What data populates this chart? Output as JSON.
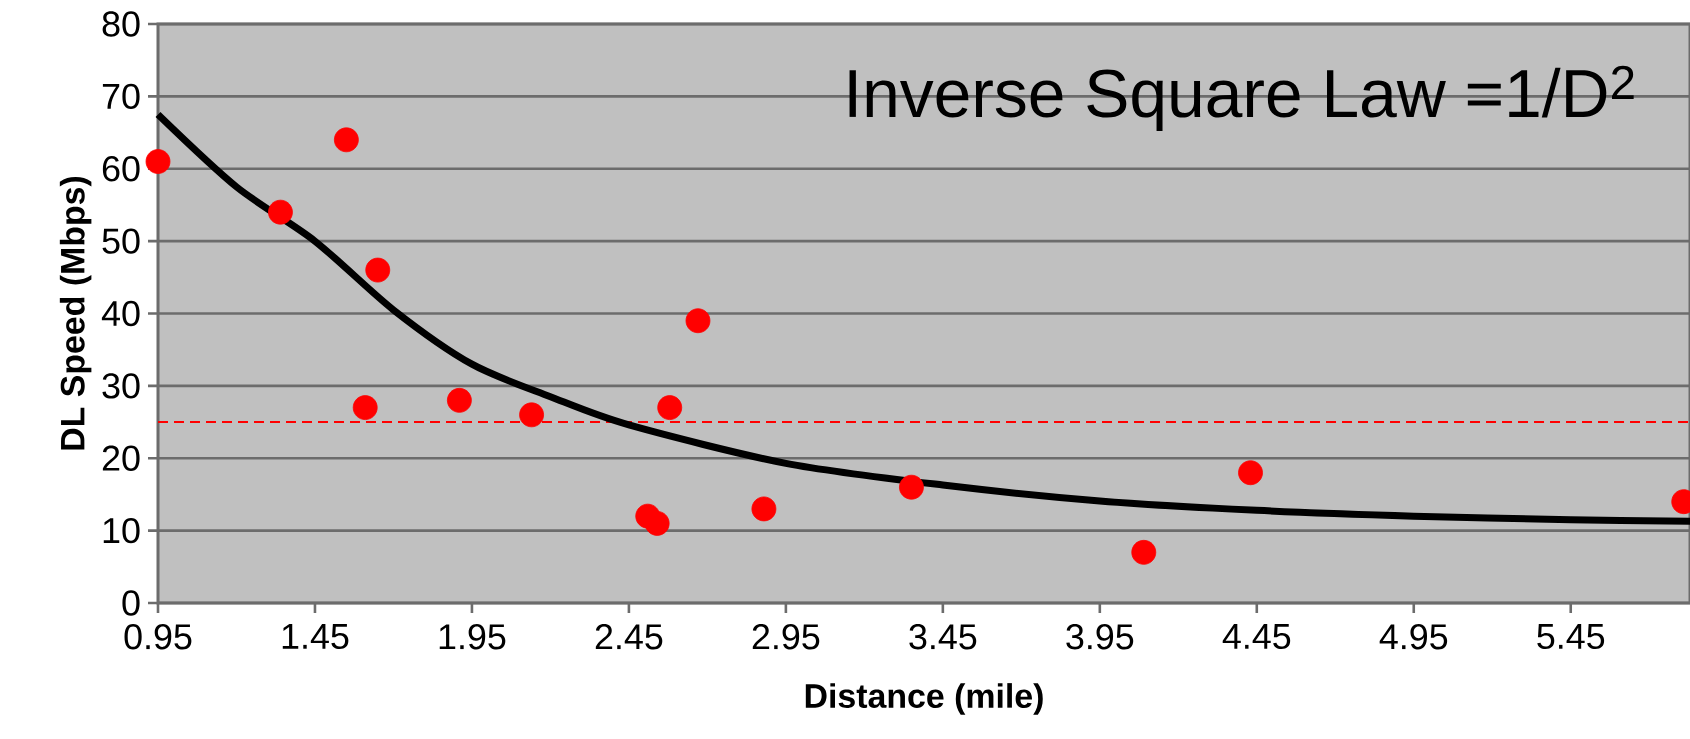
{
  "chart_data": {
    "type": "scatter",
    "xlabel": "Distance (mile)",
    "ylabel": "DL Speed (Mbps)",
    "annotations": [
      "Inverse Square Law =1/D$^{2}$"
    ],
    "xlim": [
      0.95,
      5.83
    ],
    "ylim": [
      0,
      80
    ],
    "xticks": [
      0.95,
      1.45,
      1.95,
      2.45,
      2.95,
      3.45,
      3.95,
      4.45,
      4.95,
      5.45
    ],
    "yticks": [
      0,
      10,
      20,
      30,
      40,
      50,
      60,
      70,
      80
    ],
    "grid": "y",
    "ref_lines": [
      {
        "axis": "y",
        "value": 25,
        "color": "#ff0000",
        "line_style": "dashed"
      }
    ],
    "series": [
      {
        "color": "#ff0000",
        "marker": "circle",
        "x": [
          0.95,
          1.34,
          1.55,
          1.65,
          1.61,
          1.91,
          2.14,
          2.51,
          2.54,
          2.58,
          2.67,
          2.88,
          3.35,
          4.09,
          4.43,
          5.81
        ],
        "values": [
          61,
          54,
          64,
          46,
          27,
          28,
          26,
          12,
          11,
          27,
          39,
          13,
          16,
          7,
          18,
          14
        ]
      },
      {
        "type": "line",
        "color": "#000000",
        "marker": "none",
        "line_style": "solid",
        "x": [
          0.95,
          1.2,
          1.45,
          1.7,
          1.95,
          2.2,
          2.45,
          2.95,
          3.45,
          3.95,
          4.45,
          4.95,
          5.45,
          5.83
        ],
        "values": [
          67.5,
          57.5,
          50,
          40.5,
          33,
          28.5,
          24.6,
          19.3,
          16.3,
          14.1,
          12.8,
          12,
          11.5,
          11.3
        ]
      }
    ]
  }
}
